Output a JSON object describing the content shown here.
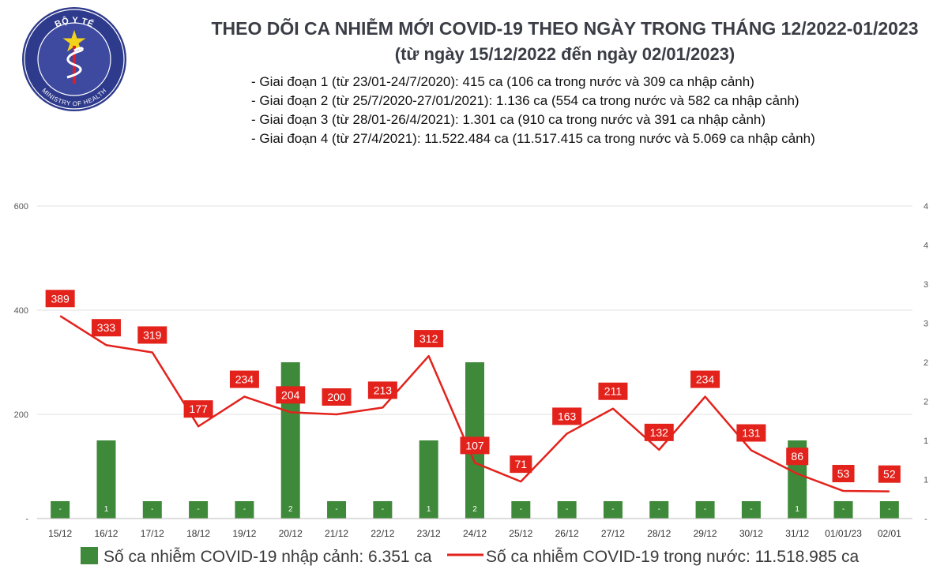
{
  "logo": {
    "top_text": "BỘ Y TẾ",
    "bottom_text": "MINISTRY OF HEALTH",
    "colors": {
      "ring": "#2e3a8c",
      "inner": "#3d4aa0",
      "star": "#f2d21b",
      "accent": "#e31b23"
    }
  },
  "chart_data": {
    "type": "bar+line",
    "title": "THEO DÕI CA NHIỄM MỚI COVID-19 THEO NGÀY TRONG THÁNG 12/2022-01/2023",
    "subtitle": "(từ ngày 15/12/2022 đến ngày 02/01/2023)",
    "notes": [
      "- Giai đoạn 1 (từ 23/01-24/7/2020): 415 ca (106 ca trong nước và 309 ca nhập cảnh)",
      "- Giai đoạn 2 (từ 25/7/2020-27/01/2021): 1.136 ca (554 ca trong nước và 582 ca nhập cảnh)",
      "- Giai đoạn 3 (từ 28/01-26/4/2021): 1.301 ca (910 ca trong nước và 391 ca nhập cảnh)",
      "- Giai đoạn 4 (từ 27/4/2021): 11.522.484 ca (11.517.415 ca trong nước và 5.069 ca nhập cảnh)"
    ],
    "categories": [
      "15/12",
      "16/12",
      "17/12",
      "18/12",
      "19/12",
      "20/12",
      "21/12",
      "22/12",
      "23/12",
      "24/12",
      "25/12",
      "26/12",
      "27/12",
      "28/12",
      "29/12",
      "30/12",
      "31/12",
      "01/01/23",
      "02/01"
    ],
    "bar_series": {
      "name": "Số ca nhiễm COVID-19 nhập cảnh: 6.351 ca",
      "values": [
        0,
        1,
        0,
        0,
        0,
        2,
        0,
        0,
        1,
        2,
        0,
        0,
        0,
        0,
        0,
        0,
        1,
        0,
        0
      ],
      "labels": [
        "-",
        "1",
        "-",
        "-",
        "-",
        "2",
        "-",
        "-",
        "1",
        "2",
        "-",
        "-",
        "-",
        "-",
        "-",
        "-",
        "1",
        "-",
        "-"
      ],
      "color": "#3f8a3a"
    },
    "line_series": {
      "name": "Số ca nhiễm COVID-19 trong nước: 11.518.985 ca",
      "values": [
        389,
        333,
        319,
        177,
        234,
        204,
        200,
        213,
        312,
        107,
        71,
        163,
        211,
        132,
        234,
        131,
        86,
        53,
        52
      ],
      "color": "#e3221c"
    },
    "left_axis": {
      "ylim": [
        0,
        600
      ],
      "tick_values": [
        0,
        200,
        400,
        600
      ],
      "tick_labels": [
        "-",
        "200",
        "400",
        "600"
      ]
    },
    "right_axis": {
      "ylim": [
        0,
        4
      ],
      "tick_values": [
        0,
        0.5,
        1,
        1.5,
        2,
        2.5,
        3,
        3.5,
        4
      ],
      "tick_labels": [
        "-",
        "1",
        "1",
        "2",
        "2",
        "3",
        "3",
        "4",
        "4"
      ]
    },
    "grid": true,
    "legend_position": "bottom"
  }
}
